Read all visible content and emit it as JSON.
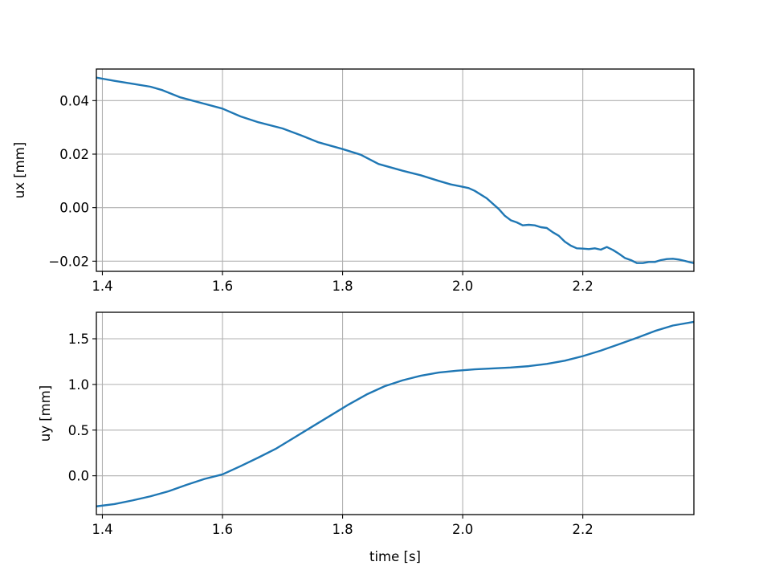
{
  "figure": {
    "background": "#ffffff",
    "line_color": "#1f77b4",
    "grid": true
  },
  "chart_data": [
    {
      "type": "line",
      "title": "",
      "xlabel": "",
      "ylabel": "ux [mm]",
      "xlim": [
        1.39,
        2.385
      ],
      "ylim": [
        -0.0238,
        0.0518
      ],
      "xticks": [
        1.4,
        1.6,
        1.8,
        2.0,
        2.2
      ],
      "xtick_labels": [
        "1.4",
        "1.6",
        "1.8",
        "2.0",
        "2.2"
      ],
      "yticks": [
        -0.02,
        0.0,
        0.02,
        0.04
      ],
      "ytick_labels": [
        "−0.02",
        "0.00",
        "0.02",
        "0.04"
      ],
      "series": [
        {
          "x": [
            1.39,
            1.42,
            1.45,
            1.48,
            1.5,
            1.53,
            1.56,
            1.6,
            1.63,
            1.66,
            1.7,
            1.73,
            1.76,
            1.8,
            1.83,
            1.86,
            1.9,
            1.93,
            1.96,
            1.98,
            2.0,
            2.01,
            2.02,
            2.04,
            2.06,
            2.07,
            2.08,
            2.09,
            2.1,
            2.11,
            2.12,
            2.13,
            2.14,
            2.15,
            2.16,
            2.17,
            2.18,
            2.19,
            2.2,
            2.21,
            2.22,
            2.23,
            2.24,
            2.25,
            2.26,
            2.27,
            2.28,
            2.29,
            2.3,
            2.31,
            2.32,
            2.33,
            2.34,
            2.35,
            2.36,
            2.37,
            2.38,
            2.385
          ],
          "y": [
            0.0486,
            0.0474,
            0.0463,
            0.0452,
            0.0439,
            0.0412,
            0.0394,
            0.037,
            0.0341,
            0.0319,
            0.0296,
            0.0271,
            0.0244,
            0.0219,
            0.0198,
            0.0163,
            0.0138,
            0.0121,
            0.01,
            0.0087,
            0.0078,
            0.0073,
            0.0063,
            0.0035,
            -0.0005,
            -0.003,
            -0.0047,
            -0.0055,
            -0.0066,
            -0.0064,
            -0.0066,
            -0.0073,
            -0.0076,
            -0.0092,
            -0.0105,
            -0.0127,
            -0.0142,
            -0.0152,
            -0.0153,
            -0.0155,
            -0.0152,
            -0.0157,
            -0.0147,
            -0.0158,
            -0.0172,
            -0.0188,
            -0.0196,
            -0.0207,
            -0.0207,
            -0.0203,
            -0.0203,
            -0.0196,
            -0.0192,
            -0.0191,
            -0.0194,
            -0.0199,
            -0.0205,
            -0.0207
          ]
        }
      ]
    },
    {
      "type": "line",
      "title": "",
      "xlabel": "time [s]",
      "ylabel": "uy [mm]",
      "xlim": [
        1.39,
        2.385
      ],
      "ylim": [
        -0.425,
        1.79
      ],
      "xticks": [
        1.4,
        1.6,
        1.8,
        2.0,
        2.2
      ],
      "xtick_labels": [
        "1.4",
        "1.6",
        "1.8",
        "2.0",
        "2.2"
      ],
      "yticks": [
        0.0,
        0.5,
        1.0,
        1.5
      ],
      "ytick_labels": [
        "0.0",
        "0.5",
        "1.0",
        "1.5"
      ],
      "series": [
        {
          "x": [
            1.39,
            1.42,
            1.45,
            1.48,
            1.51,
            1.54,
            1.57,
            1.6,
            1.63,
            1.66,
            1.69,
            1.72,
            1.75,
            1.78,
            1.81,
            1.84,
            1.87,
            1.9,
            1.93,
            1.96,
            1.99,
            2.02,
            2.05,
            2.08,
            2.11,
            2.14,
            2.17,
            2.2,
            2.23,
            2.26,
            2.29,
            2.32,
            2.35,
            2.385
          ],
          "y": [
            -0.335,
            -0.31,
            -0.27,
            -0.225,
            -0.17,
            -0.1,
            -0.035,
            0.015,
            0.105,
            0.2,
            0.3,
            0.42,
            0.54,
            0.66,
            0.78,
            0.89,
            0.98,
            1.045,
            1.095,
            1.13,
            1.15,
            1.165,
            1.175,
            1.185,
            1.2,
            1.225,
            1.26,
            1.31,
            1.37,
            1.44,
            1.51,
            1.585,
            1.645,
            1.685
          ]
        }
      ]
    }
  ]
}
